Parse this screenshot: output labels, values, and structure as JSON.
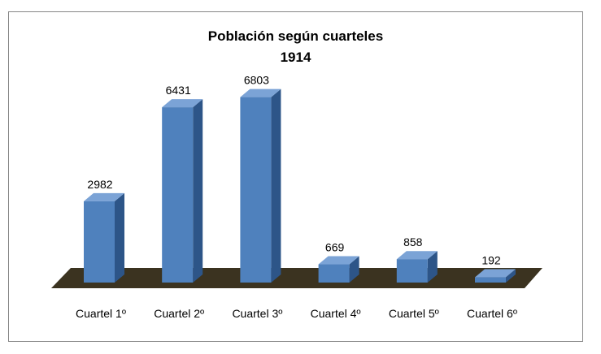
{
  "chart_data": {
    "type": "bar",
    "title": "Población según cuarteles",
    "subtitle": "1914",
    "categories": [
      "Cuartel 1º",
      "Cuartel 2º",
      "Cuartel 3º",
      "Cuartel 4º",
      "Cuartel 5º",
      "Cuartel 6º"
    ],
    "values": [
      2982,
      6431,
      6803,
      669,
      858,
      192
    ],
    "data_labels": [
      "2982",
      "6431",
      "6803",
      "669",
      "858",
      "192"
    ],
    "ylim": [
      0,
      7000
    ],
    "grid": false,
    "legend": "none",
    "style": "3d-column",
    "colors": {
      "bar_front": "#4F81BD",
      "bar_side": "#2D5588",
      "bar_top": "#7BA3D6",
      "floor": "#3B3320",
      "frame_border": "#868686"
    }
  }
}
